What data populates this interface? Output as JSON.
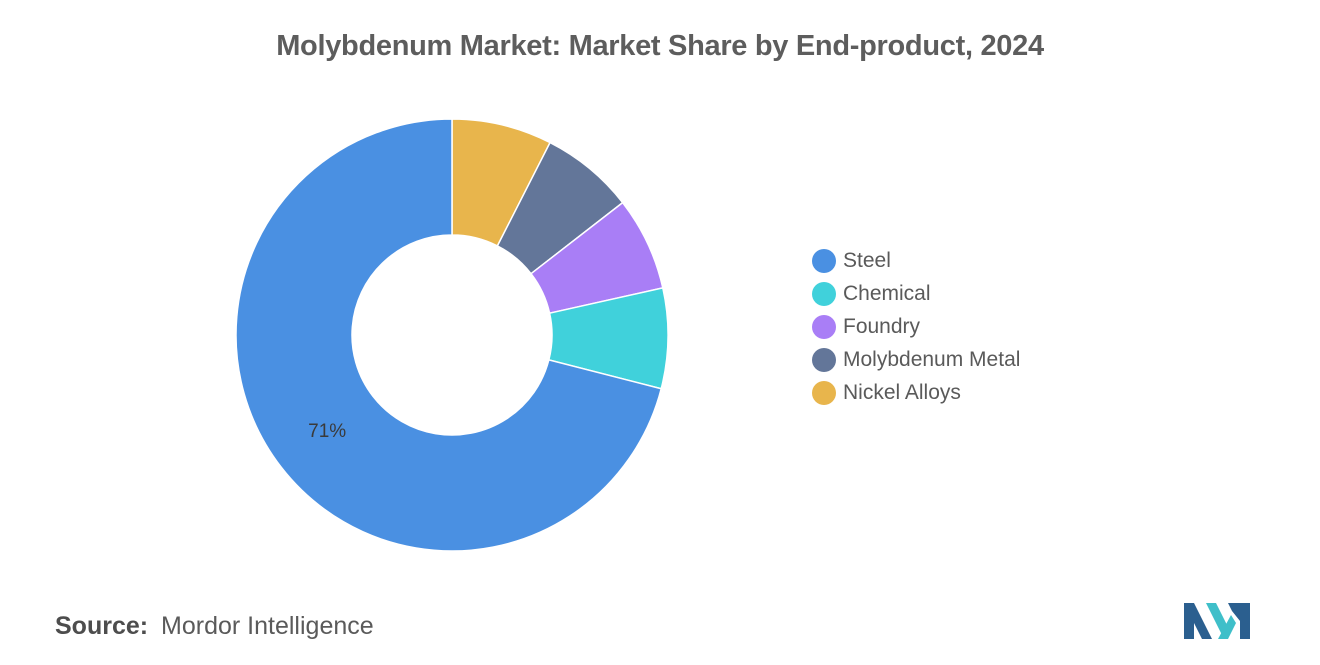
{
  "title": "Molybdenum Market: Market Share by End-product, 2024",
  "chart_data": {
    "type": "pie",
    "style": "donut",
    "title": "Molybdenum Market: Market Share by End-product, 2024",
    "categories": [
      "Steel",
      "Chemical",
      "Foundry",
      "Molybdenum Metal",
      "Nickel Alloys"
    ],
    "values": [
      71,
      7.5,
      7,
      7,
      7.5
    ],
    "colors": [
      "#4a90e2",
      "#40d1db",
      "#a97ef6",
      "#637699",
      "#e8b54c"
    ],
    "data_labels": [
      {
        "category": "Steel",
        "text": "71%"
      }
    ],
    "legend": {
      "position": "right"
    }
  },
  "legend": {
    "items": [
      {
        "label": "Steel",
        "color": "#4a90e2"
      },
      {
        "label": "Chemical",
        "color": "#40d1db"
      },
      {
        "label": "Foundry",
        "color": "#a97ef6"
      },
      {
        "label": "Molybdenum Metal",
        "color": "#637699"
      },
      {
        "label": "Nickel Alloys",
        "color": "#e8b54c"
      }
    ]
  },
  "source": {
    "label": "Source:",
    "value": "Mordor Intelligence"
  },
  "logo": {
    "name": "mordor-intelligence-logo-icon",
    "colors": [
      "#2b5f8f",
      "#3fbfc9"
    ]
  }
}
